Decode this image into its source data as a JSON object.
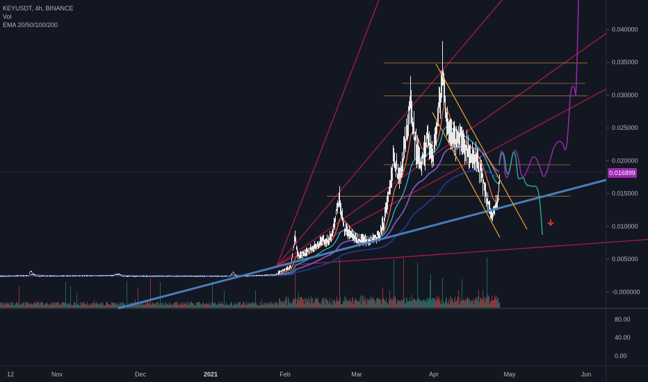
{
  "header": {
    "symbol_line": "KEYUSDT, 4h, BINANCE",
    "indicator_1": "Vol",
    "indicator_2": "EMA 20/50/100/200"
  },
  "current_price_label": "0.016899",
  "colors": {
    "background": "#131722",
    "candle": "#ffffff",
    "trendline_blue": "#4a7db8",
    "fan_red": "#b71c4a",
    "fib_orange": "#c68a3b",
    "channel_orange": "#f0a830",
    "projection_purple": "#9c27b0",
    "projection_cyan": "#26a69a",
    "arrow_red": "#e53935",
    "price_badge": "#9c27b0"
  },
  "chart_data": [
    {
      "type": "line",
      "panel": "price",
      "y_ticks": [
        "0.040000",
        "0.035000",
        "0.030000",
        "0.025000",
        "0.020000",
        "0.015000",
        "0.010000",
        "0.005000",
        "-0.000000"
      ],
      "y_tick_values": [
        0.04,
        0.035,
        0.03,
        0.025,
        0.02,
        0.015,
        0.01,
        0.005,
        0.0
      ],
      "ylim": [
        -0.0025,
        0.0445
      ],
      "x_ticks": [
        "12",
        "Nov",
        "Dec",
        "2021",
        "Feb",
        "Mar",
        "Apr",
        "May",
        "Jun"
      ],
      "series": [
        {
          "values_approx": [
            {
              "t": "Oct 12",
              "close": 0.0024
            },
            {
              "t": "Nov 1",
              "close": 0.0024
            },
            {
              "t": "Dec 1",
              "close": 0.0025
            },
            {
              "t": "Jan 1",
              "close": 0.0024
            },
            {
              "t": "Jan 25",
              "close": 0.0032
            },
            {
              "t": "Feb 2",
              "close": 0.006
            },
            {
              "t": "Feb 10",
              "close": 0.007
            },
            {
              "t": "Feb 20",
              "close": 0.014
            },
            {
              "t": "Feb 25",
              "close": 0.008
            },
            {
              "t": "Mar 5",
              "close": 0.0075
            },
            {
              "t": "Mar 12",
              "close": 0.011
            },
            {
              "t": "Mar 17",
              "close": 0.018
            },
            {
              "t": "Mar 22",
              "close": 0.028
            },
            {
              "t": "Mar 28",
              "close": 0.021
            },
            {
              "t": "Apr 3",
              "close": 0.0345
            },
            {
              "t": "Apr 8",
              "close": 0.024
            },
            {
              "t": "Apr 15",
              "close": 0.02
            },
            {
              "t": "Apr 22",
              "close": 0.012
            },
            {
              "t": "Apr 27",
              "close": 0.016
            }
          ]
        }
      ],
      "fib_levels": [
        0.0349,
        0.0318,
        0.0299,
        0.0194,
        0.0146
      ],
      "current_price": 0.016899
    },
    {
      "type": "bar",
      "panel": "volume",
      "title": "Vol"
    },
    {
      "type": "line",
      "panel": "oscillator",
      "y_ticks": [
        "80.00",
        "40.00",
        "0.00"
      ],
      "y_tick_values": [
        80,
        40,
        0
      ],
      "ylim": [
        -22,
        104
      ]
    }
  ]
}
